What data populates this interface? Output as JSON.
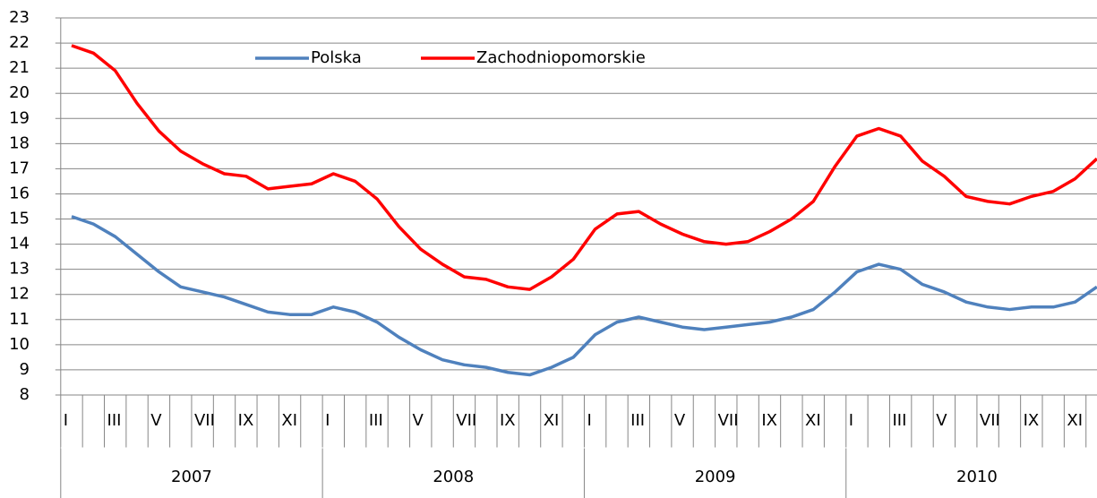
{
  "chart_data": {
    "type": "line",
    "categories": [
      "I",
      null,
      "III",
      null,
      "V",
      null,
      "VII",
      null,
      "IX",
      null,
      "XI",
      null,
      "I",
      null,
      "III",
      null,
      "V",
      null,
      "VII",
      null,
      "IX",
      null,
      "XI",
      null,
      "I",
      null,
      "III",
      null,
      "V",
      null,
      "VII",
      null,
      "IX",
      null,
      "XI",
      null,
      "I",
      null,
      "III",
      null,
      "V",
      null,
      "VII",
      null,
      "IX",
      null,
      "XI",
      null
    ],
    "groups": [
      "2007",
      "2008",
      "2009",
      "2010"
    ],
    "series": [
      {
        "name": "Polska",
        "color": "#4f81bd",
        "values": [
          15.1,
          14.8,
          14.3,
          13.6,
          12.9,
          12.3,
          12.1,
          11.9,
          11.6,
          11.3,
          11.2,
          11.2,
          11.5,
          11.3,
          10.9,
          10.3,
          9.8,
          9.4,
          9.2,
          9.1,
          8.9,
          8.8,
          9.1,
          9.5,
          10.4,
          10.9,
          11.1,
          10.9,
          10.7,
          10.6,
          10.7,
          10.8,
          10.9,
          11.1,
          11.4,
          12.1,
          12.9,
          13.2,
          13.0,
          12.4,
          12.1,
          11.7,
          11.5,
          11.4,
          11.5,
          11.5,
          11.7,
          12.3
        ]
      },
      {
        "name": "Zachodniopomorskie",
        "color": "#ff0000",
        "values": [
          21.9,
          21.6,
          20.9,
          19.6,
          18.5,
          17.7,
          17.2,
          16.8,
          16.7,
          16.2,
          16.3,
          16.4,
          16.8,
          16.5,
          15.8,
          14.7,
          13.8,
          13.2,
          12.7,
          12.6,
          12.3,
          12.2,
          12.7,
          13.4,
          14.6,
          15.2,
          15.3,
          14.8,
          14.4,
          14.1,
          14.0,
          14.1,
          14.5,
          15.0,
          15.7,
          17.1,
          18.3,
          18.6,
          18.3,
          17.3,
          16.7,
          15.9,
          15.7,
          15.6,
          15.9,
          16.1,
          16.6,
          17.4
        ]
      }
    ],
    "ylim": [
      8,
      23
    ],
    "yticks": [
      8,
      9,
      10,
      11,
      12,
      13,
      14,
      15,
      16,
      17,
      18,
      19,
      20,
      21,
      22,
      23
    ],
    "grid": true
  }
}
